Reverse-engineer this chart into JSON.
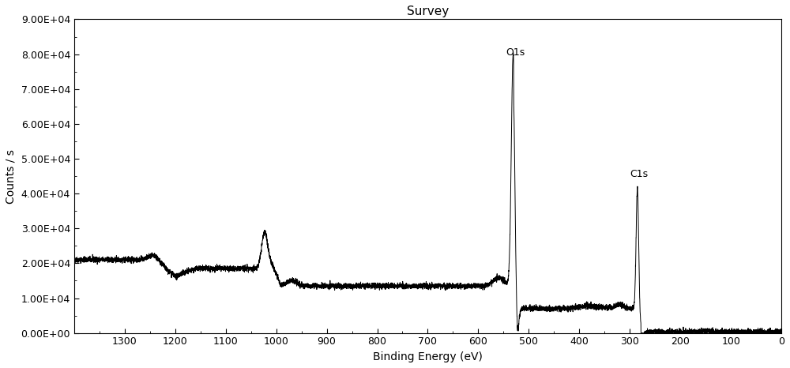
{
  "title": "Survey",
  "xlabel": "Binding Energy (eV)",
  "ylabel": "Counts / s",
  "xlim": [
    1400,
    0
  ],
  "ylim": [
    0,
    90000
  ],
  "xticks": [
    1300,
    1200,
    1100,
    1000,
    900,
    800,
    700,
    600,
    500,
    400,
    300,
    200,
    100,
    0
  ],
  "yticks": [
    0,
    10000,
    20000,
    30000,
    40000,
    50000,
    60000,
    70000,
    80000,
    90000
  ],
  "ytick_labels": [
    "0.00E+00",
    "1.00E+04",
    "2.00E+04",
    "3.00E+04",
    "4.00E+04",
    "5.00E+04",
    "6.00E+04",
    "7.00E+04",
    "8.00E+04",
    "9.00E+04"
  ],
  "O1s_peak_x": 531,
  "O1s_peak_y": 84000,
  "O1s_label": "O1s",
  "C1s_peak_x": 285,
  "C1s_peak_y": 43000,
  "C1s_label": "C1s",
  "line_color": "#000000",
  "bg_color": "#ffffff"
}
